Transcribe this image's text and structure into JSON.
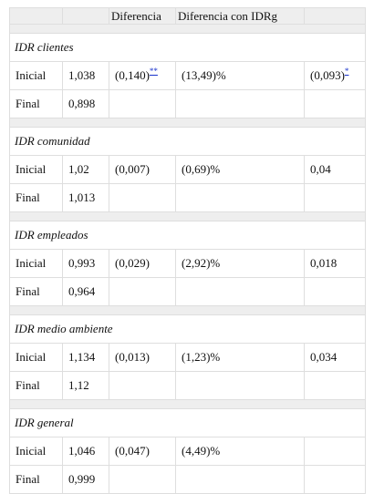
{
  "table": {
    "header": [
      "",
      "",
      "Diferencia",
      "Diferencia con IDRg",
      ""
    ],
    "sections": [
      {
        "title": "IDR clientes",
        "rows": [
          {
            "label": "Inicial",
            "value": "1,038",
            "diff": "(0,140)",
            "diff_note": "**",
            "diff_idrg": "(13,49)%",
            "last": "(0,093)",
            "last_note": "*"
          },
          {
            "label": "Final",
            "value": "0,898",
            "diff": "",
            "diff_note": "",
            "diff_idrg": "",
            "last": "",
            "last_note": ""
          }
        ]
      },
      {
        "title": "IDR comunidad",
        "rows": [
          {
            "label": "Inicial",
            "value": "1,02",
            "diff": "(0,007)",
            "diff_note": "",
            "diff_idrg": "(0,69)%",
            "last": "0,04",
            "last_note": ""
          },
          {
            "label": "Final",
            "value": "1,013",
            "diff": "",
            "diff_note": "",
            "diff_idrg": "",
            "last": "",
            "last_note": ""
          }
        ]
      },
      {
        "title": "IDR empleados",
        "rows": [
          {
            "label": "Inicial",
            "value": "0,993",
            "diff": "(0,029)",
            "diff_note": "",
            "diff_idrg": "(2,92)%",
            "last": "0,018",
            "last_note": ""
          },
          {
            "label": "Final",
            "value": "0,964",
            "diff": "",
            "diff_note": "",
            "diff_idrg": "",
            "last": "",
            "last_note": ""
          }
        ]
      },
      {
        "title": "IDR medio ambiente",
        "rows": [
          {
            "label": "Inicial",
            "value": "1,134",
            "diff": "(0,013)",
            "diff_note": "",
            "diff_idrg": "(1,23)%",
            "last": "0,034",
            "last_note": ""
          },
          {
            "label": "Final",
            "value": "1,12",
            "diff": "",
            "diff_note": "",
            "diff_idrg": "",
            "last": "",
            "last_note": ""
          }
        ]
      },
      {
        "title": "IDR general",
        "rows": [
          {
            "label": "Inicial",
            "value": "1,046",
            "diff": "(0,047)",
            "diff_note": "",
            "diff_idrg": "(4,49)%",
            "last": "",
            "last_note": ""
          },
          {
            "label": "Final",
            "value": "0,999",
            "diff": "",
            "diff_note": "",
            "diff_idrg": "",
            "last": "",
            "last_note": ""
          }
        ]
      }
    ]
  },
  "colors": {
    "header_bg": "#eeeeee",
    "border": "#dedede",
    "note_link": "#1a33cc"
  }
}
